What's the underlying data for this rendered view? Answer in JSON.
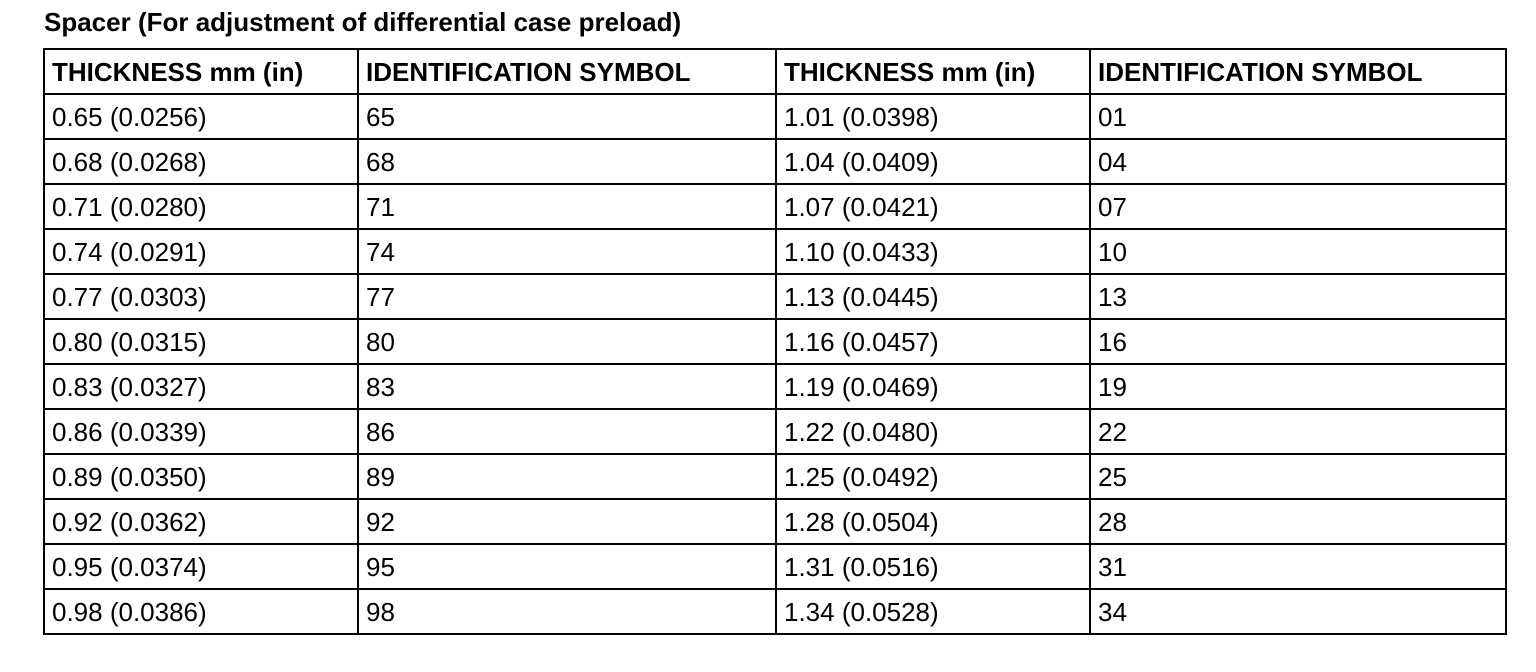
{
  "document": {
    "title": "Spacer (For adjustment of differential case preload)"
  },
  "table": {
    "headers": [
      "THICKNESS mm (in)",
      "IDENTIFICATION SYMBOL",
      "THICKNESS mm (in)",
      "IDENTIFICATION SYMBOL"
    ],
    "rows": [
      [
        "0.65 (0.0256)",
        "65",
        "1.01 (0.0398)",
        "01"
      ],
      [
        "0.68 (0.0268)",
        "68",
        "1.04 (0.0409)",
        "04"
      ],
      [
        "0.71 (0.0280)",
        "71",
        "1.07 (0.0421)",
        "07"
      ],
      [
        "0.74 (0.0291)",
        "74",
        "1.10 (0.0433)",
        "10"
      ],
      [
        "0.77 (0.0303)",
        "77",
        "1.13 (0.0445)",
        "13"
      ],
      [
        "0.80 (0.0315)",
        "80",
        "1.16 (0.0457)",
        "16"
      ],
      [
        "0.83 (0.0327)",
        "83",
        "1.19 (0.0469)",
        "19"
      ],
      [
        "0.86 (0.0339)",
        "86",
        "1.22 (0.0480)",
        "22"
      ],
      [
        "0.89 (0.0350)",
        "89",
        "1.25 (0.0492)",
        "25"
      ],
      [
        "0.92 (0.0362)",
        "92",
        "1.28 (0.0504)",
        "28"
      ],
      [
        "0.95 (0.0374)",
        "95",
        "1.31 (0.0516)",
        "31"
      ],
      [
        "0.98 (0.0386)",
        "98",
        "1.34 (0.0528)",
        "34"
      ]
    ]
  }
}
